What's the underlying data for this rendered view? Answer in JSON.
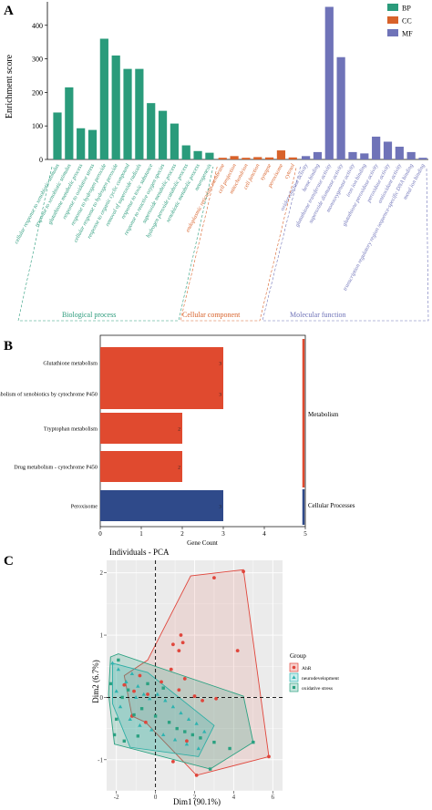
{
  "panels": {
    "a": {
      "letter": "A"
    },
    "b": {
      "letter": "B"
    },
    "c": {
      "letter": "C"
    }
  },
  "colors": {
    "bp": "#2a9b7b",
    "cc": "#d8622a",
    "mf": "#6f73b8",
    "metabolism": "#e04a2f",
    "cellular": "#2f4a8a",
    "abr": "#e0463c",
    "neuro": "#2eb3b0",
    "oxid": "#2aa181"
  },
  "chart_data": [
    {
      "type": "bar",
      "panel": "A",
      "ylabel": "Enrichment score",
      "ylim": [
        0,
        470
      ],
      "yticks": [
        0,
        100,
        200,
        300,
        400
      ],
      "legend": [
        {
          "key": "bp",
          "label": "BP"
        },
        {
          "key": "cc",
          "label": "CC"
        },
        {
          "key": "mf",
          "label": "MF"
        }
      ],
      "legend_position": "top-right",
      "groups": [
        {
          "key": "bp",
          "label": "Biological process"
        },
        {
          "key": "cc",
          "label": "Cellular component"
        },
        {
          "key": "mf",
          "label": "Molecular function"
        }
      ],
      "categories": [
        {
          "label": "cellular response to xenobiotic stimulus",
          "group": "bp",
          "value": 140
        },
        {
          "label": "response to xenobiotic stimulus",
          "group": "bp",
          "value": 215
        },
        {
          "label": "glutathione metabolic process",
          "group": "bp",
          "value": 93
        },
        {
          "label": "response to oxidative stress",
          "group": "bp",
          "value": 88
        },
        {
          "label": "response to hydrogen peroxide",
          "group": "bp",
          "value": 360
        },
        {
          "label": "cellular response to hydrogen peroxide",
          "group": "bp",
          "value": 310
        },
        {
          "label": "response to organic cyclic compound",
          "group": "bp",
          "value": 270
        },
        {
          "label": "removal of superoxide radicals",
          "group": "bp",
          "value": 270
        },
        {
          "label": "response to toxic substance",
          "group": "bp",
          "value": 168
        },
        {
          "label": "response to reactive oxygen species",
          "group": "bp",
          "value": 145
        },
        {
          "label": "superoxide metabolic process",
          "group": "bp",
          "value": 107
        },
        {
          "label": "hydrogen peroxide catabolic process",
          "group": "bp",
          "value": 42
        },
        {
          "label": "xenobiotic metabolic process",
          "group": "bp",
          "value": 25
        },
        {
          "label": "neurogenesis",
          "group": "bp",
          "value": 20
        },
        {
          "label": "endoplasmic reticulum membrane",
          "group": "cc",
          "value": 5
        },
        {
          "label": "cell projection",
          "group": "cc",
          "value": 10
        },
        {
          "label": "mitochondrion",
          "group": "cc",
          "value": 5
        },
        {
          "label": "cell junction",
          "group": "cc",
          "value": 7
        },
        {
          "label": "synapse",
          "group": "cc",
          "value": 6
        },
        {
          "label": "peroxisome",
          "group": "cc",
          "value": 27
        },
        {
          "label": "cytosol",
          "group": "cc",
          "value": 6
        },
        {
          "label": "oxidoreductase activity",
          "group": "mf",
          "value": 10
        },
        {
          "label": "heme binding",
          "group": "mf",
          "value": 22
        },
        {
          "label": "glutathione transferase activity",
          "group": "mf",
          "value": 455
        },
        {
          "label": "superoxide dismutase activity",
          "group": "mf",
          "value": 305
        },
        {
          "label": "monooxygenase activity",
          "group": "mf",
          "value": 22
        },
        {
          "label": "iron ion binding",
          "group": "mf",
          "value": 18
        },
        {
          "label": "glutathione peroxidase activity",
          "group": "mf",
          "value": 68
        },
        {
          "label": "peroxidase activity",
          "group": "mf",
          "value": 53
        },
        {
          "label": "antioxidant activity",
          "group": "mf",
          "value": 38
        },
        {
          "label": "transcription regulatory region sequence-specific DNA binding",
          "group": "mf",
          "value": 22
        },
        {
          "label": "metal ion binding",
          "group": "mf",
          "value": 5
        }
      ]
    },
    {
      "type": "bar",
      "panel": "B",
      "orientation": "horizontal",
      "xlabel": "Gene Count",
      "xlim": [
        0,
        5
      ],
      "xticks": [
        0,
        1,
        2,
        3,
        4,
        5
      ],
      "categories": [
        {
          "label": "Glutathione metabolism",
          "value": 3,
          "group": "Metabolism"
        },
        {
          "label": "Metabolism of xenobiotics by cytochrome P450",
          "value": 3,
          "group": "Metabolism"
        },
        {
          "label": "Tryptophan metabolism",
          "value": 2,
          "group": "Metabolism"
        },
        {
          "label": "Drug metabolism - cytochrome P450",
          "value": 2,
          "group": "Metabolism"
        },
        {
          "label": "Peroxisome",
          "value": 3,
          "group": "Cellular Processes"
        }
      ],
      "group_labels": [
        "Metabolism",
        "Cellular Processes"
      ]
    },
    {
      "type": "scatter",
      "panel": "C",
      "title": "Individuals - PCA",
      "xlabel": "Dim1 (90.1%)",
      "ylabel": "Dim2 (6.7%)",
      "xlim": [
        -2.5,
        6.5
      ],
      "ylim": [
        -1.5,
        2.2
      ],
      "xticks": [
        -2,
        0,
        2,
        4,
        6
      ],
      "yticks": [
        -1,
        0,
        1,
        2
      ],
      "grid": true,
      "legend_title": "Group",
      "legend_position": "right",
      "series": [
        {
          "name": "AhR",
          "color_key": "abr",
          "marker": "circle",
          "points": [
            [
              -1.6,
              0.2
            ],
            [
              -1.1,
              0.1
            ],
            [
              -0.8,
              0.35
            ],
            [
              -0.4,
              0.05
            ],
            [
              0.3,
              0.25
            ],
            [
              0.8,
              0.45
            ],
            [
              1.2,
              0.12
            ],
            [
              1.5,
              0.3
            ],
            [
              2.0,
              0.02
            ],
            [
              2.4,
              -0.05
            ],
            [
              3.1,
              -0.02
            ],
            [
              -1.2,
              -0.3
            ],
            [
              -0.5,
              -0.4
            ],
            [
              0.9,
              0.85
            ],
            [
              1.3,
              1.0
            ],
            [
              1.2,
              0.75
            ],
            [
              4.2,
              0.75
            ],
            [
              3.0,
              1.92
            ],
            [
              4.5,
              2.02
            ],
            [
              5.8,
              -0.95
            ],
            [
              1.6,
              -0.7
            ],
            [
              0.9,
              -1.03
            ],
            [
              2.1,
              -1.25
            ],
            [
              1.4,
              0.88
            ]
          ]
        },
        {
          "name": "neurodevelopment",
          "color_key": "neuro",
          "marker": "triangle",
          "points": [
            [
              -2.2,
              0.55
            ],
            [
              -1.9,
              0.45
            ],
            [
              -1.5,
              0.25
            ],
            [
              -1.2,
              0.38
            ],
            [
              -0.9,
              0.18
            ],
            [
              -0.6,
              0.05
            ],
            [
              -0.3,
              -0.02
            ],
            [
              0.1,
              0.05
            ],
            [
              0.5,
              -0.05
            ],
            [
              0.9,
              -0.15
            ],
            [
              1.3,
              -0.25
            ],
            [
              1.7,
              -0.35
            ],
            [
              2.1,
              -0.42
            ],
            [
              2.5,
              -0.55
            ],
            [
              -1.8,
              -0.15
            ],
            [
              -1.3,
              -0.35
            ],
            [
              -0.8,
              -0.45
            ],
            [
              -0.2,
              -0.52
            ],
            [
              0.4,
              -0.6
            ],
            [
              1.0,
              -0.68
            ],
            [
              1.6,
              -0.75
            ],
            [
              2.2,
              -0.82
            ],
            [
              -2.0,
              0.1
            ],
            [
              -1.0,
              0.0
            ]
          ]
        },
        {
          "name": "oxidative stress",
          "color_key": "oxid",
          "marker": "square",
          "points": [
            [
              -2.3,
              0.22
            ],
            [
              -2.0,
              -0.35
            ],
            [
              -1.7,
              0.0
            ],
            [
              -1.4,
              0.12
            ],
            [
              -1.1,
              -0.28
            ],
            [
              -0.7,
              -0.18
            ],
            [
              -0.4,
              0.22
            ],
            [
              0.0,
              -0.3
            ],
            [
              0.4,
              0.15
            ],
            [
              0.7,
              -0.4
            ],
            [
              1.1,
              -0.5
            ],
            [
              1.5,
              -0.55
            ],
            [
              1.9,
              -0.6
            ],
            [
              2.3,
              -0.65
            ],
            [
              3.0,
              -0.72
            ],
            [
              3.8,
              -0.82
            ],
            [
              5.0,
              -0.72
            ],
            [
              -2.1,
              -0.6
            ],
            [
              -1.6,
              -0.7
            ],
            [
              -0.9,
              -0.62
            ],
            [
              2.8,
              -1.15
            ],
            [
              -1.9,
              0.6
            ]
          ]
        }
      ],
      "hulls": {
        "abr": [
          [
            -1.6,
            0.35
          ],
          [
            -0.4,
            0.6
          ],
          [
            1.8,
            1.95
          ],
          [
            4.5,
            2.05
          ],
          [
            5.8,
            -0.95
          ],
          [
            2.1,
            -1.25
          ],
          [
            -0.5,
            -0.4
          ],
          [
            -1.2,
            -0.3
          ]
        ],
        "neuro": [
          [
            -2.2,
            0.55
          ],
          [
            -0.4,
            0.4
          ],
          [
            3.0,
            -0.45
          ],
          [
            2.2,
            -0.95
          ],
          [
            -1.3,
            -0.8
          ],
          [
            -2.2,
            -0.1
          ]
        ],
        "oxid": [
          [
            -2.3,
            0.65
          ],
          [
            -1.9,
            0.7
          ],
          [
            4.5,
            0.02
          ],
          [
            5.0,
            -0.72
          ],
          [
            2.8,
            -1.15
          ],
          [
            -2.1,
            -0.75
          ],
          [
            -2.4,
            0.05
          ]
        ]
      }
    }
  ]
}
